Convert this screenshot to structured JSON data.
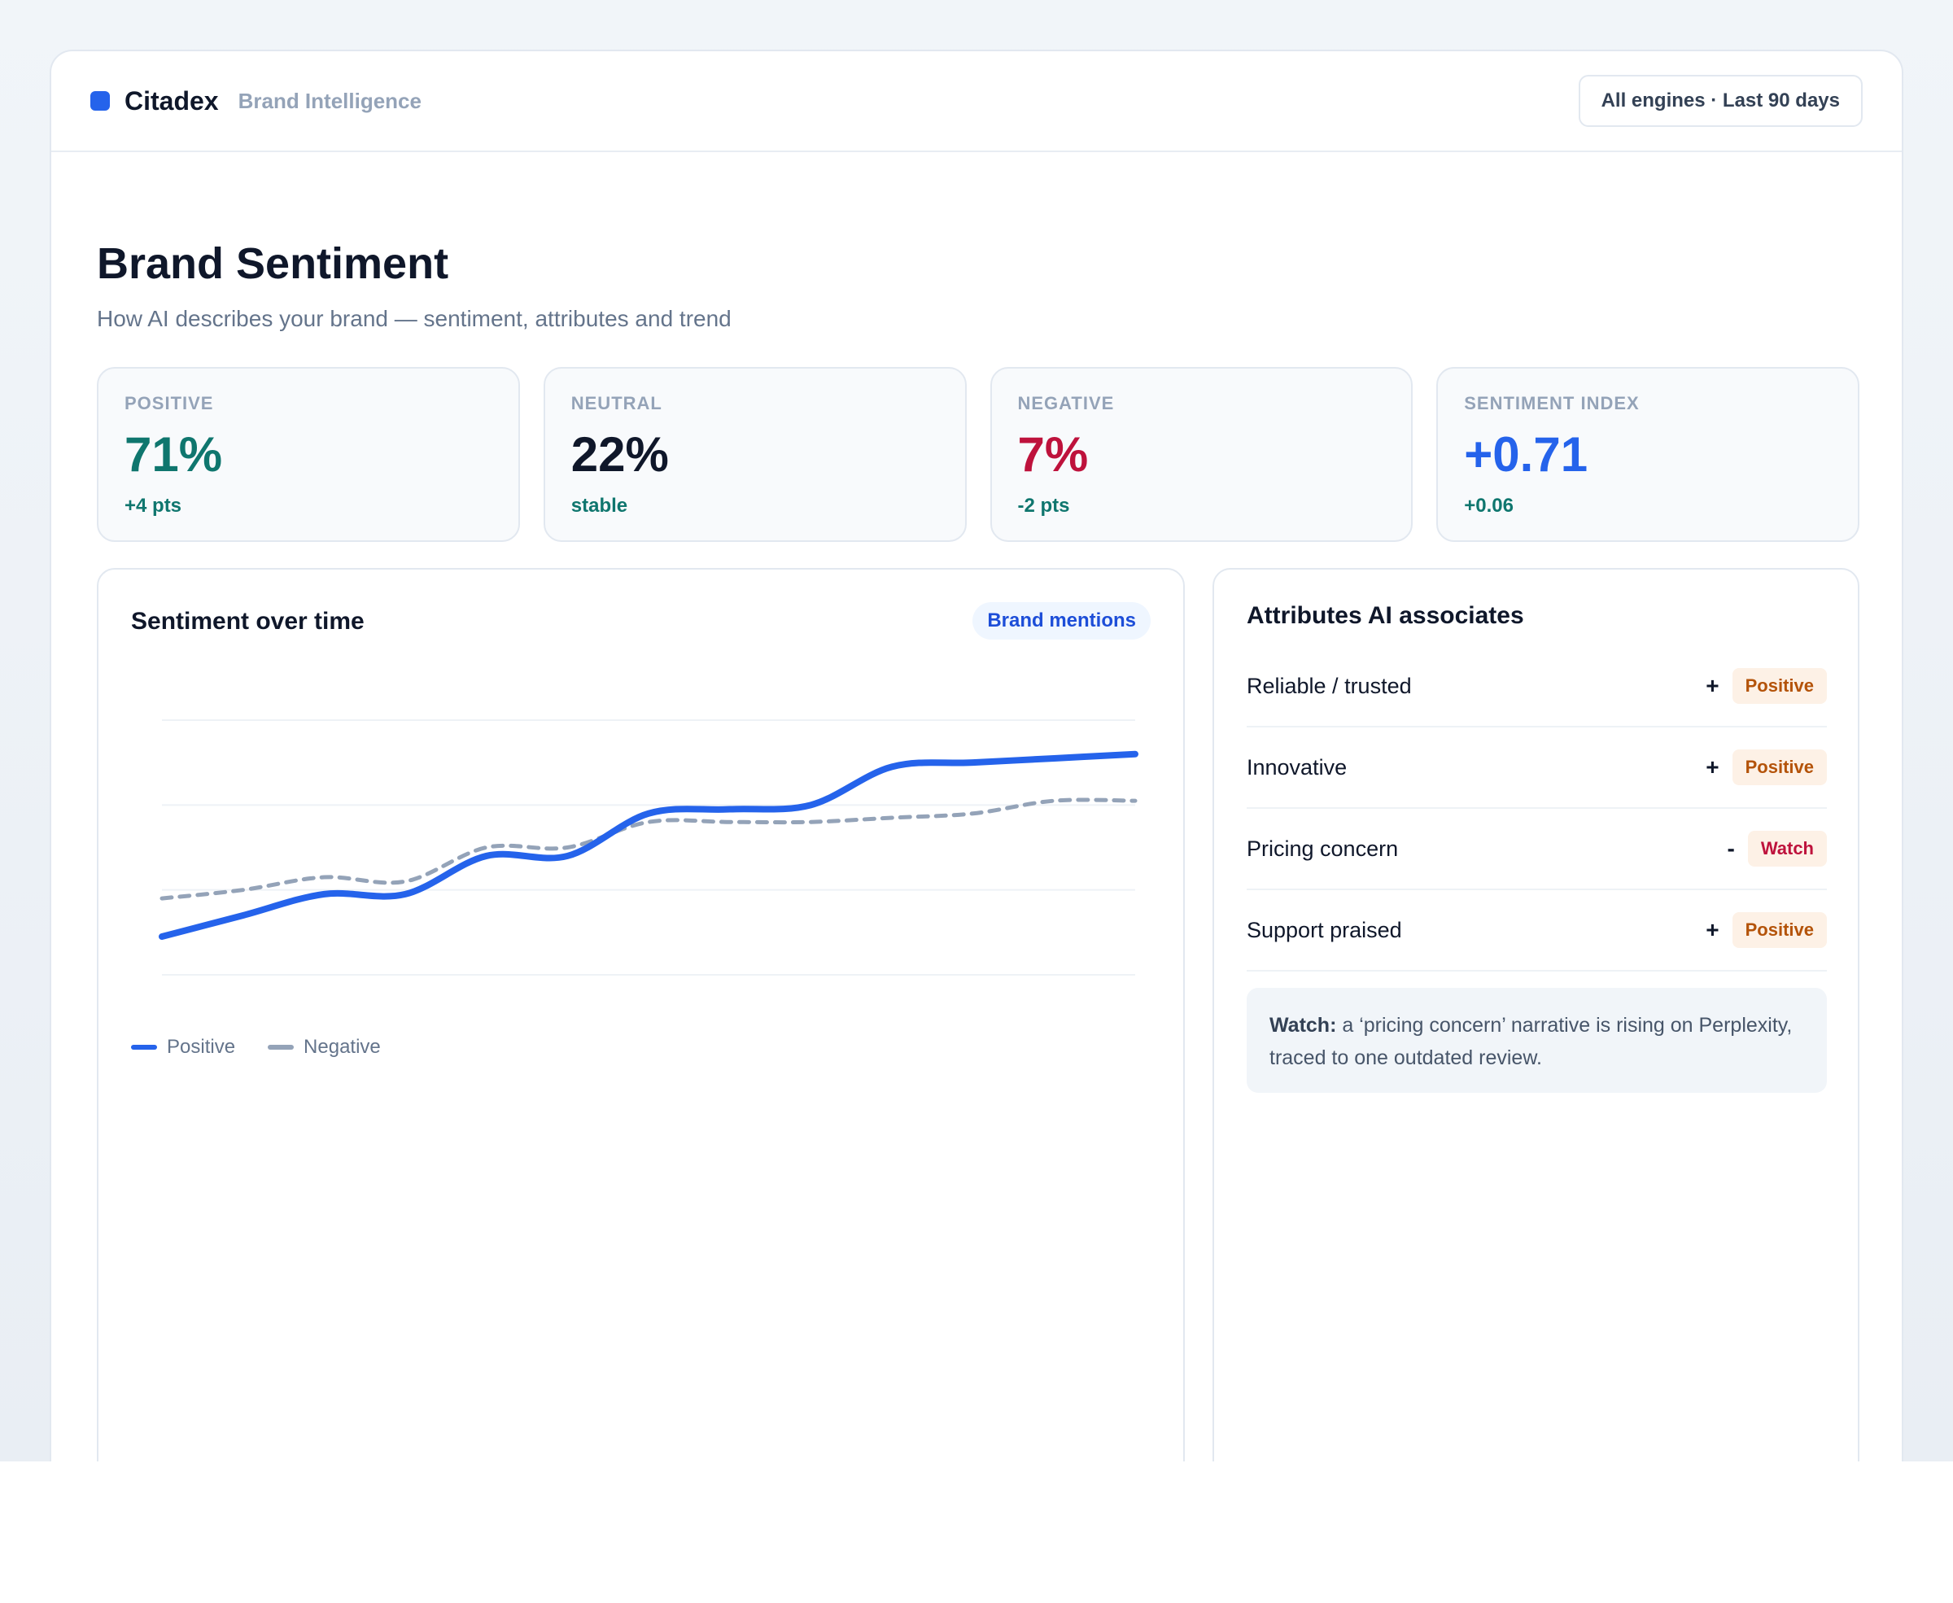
{
  "app": {
    "name": "Citadex",
    "section": "Brand Intelligence",
    "range_button": "All engines · Last 90 days",
    "accent": "#2563eb"
  },
  "page": {
    "title": "Brand Sentiment",
    "subtitle": "How AI describes your brand — sentiment, attributes and trend"
  },
  "kpis": [
    {
      "label": "POSITIVE",
      "value": "71%",
      "delta": "+4 pts",
      "color": "#0f766e"
    },
    {
      "label": "NEUTRAL",
      "value": "22%",
      "delta": "stable",
      "color": "#0f172a"
    },
    {
      "label": "NEGATIVE",
      "value": "7%",
      "delta": "-2 pts",
      "color": "#be123c"
    },
    {
      "label": "SENTIMENT INDEX",
      "value": "+0.71",
      "delta": "+0.06",
      "color": "#2563eb"
    }
  ],
  "chart": {
    "title": "Sentiment over time",
    "pill": "Brand mentions"
  },
  "chart_data": {
    "type": "line",
    "grid": true,
    "ylim": [
      0,
      3
    ],
    "x": [
      0,
      1,
      2,
      3,
      4,
      5,
      6,
      7,
      8,
      9,
      10,
      11,
      12
    ],
    "series": [
      {
        "name": "Positive",
        "color": "#2563eb",
        "style": "solid",
        "values": [
          0.45,
          0.7,
          0.95,
          0.95,
          1.4,
          1.4,
          1.9,
          1.95,
          2.0,
          2.45,
          2.5,
          2.55,
          2.6
        ]
      },
      {
        "name": "Negative",
        "color": "#94a3b8",
        "style": "dashed",
        "values": [
          0.9,
          1.0,
          1.15,
          1.1,
          1.5,
          1.5,
          1.8,
          1.8,
          1.8,
          1.85,
          1.9,
          2.05,
          2.05
        ]
      }
    ]
  },
  "attributes": {
    "title": "Attributes AI associates",
    "items": [
      {
        "label": "Reliable / trusted",
        "sign": "+",
        "badge": "Positive",
        "badge_color": "#b45309"
      },
      {
        "label": "Innovative",
        "sign": "+",
        "badge": "Positive",
        "badge_color": "#b45309"
      },
      {
        "label": "Pricing concern",
        "sign": "-",
        "badge": "Watch",
        "badge_color": "#be123c"
      },
      {
        "label": "Support praised",
        "sign": "+",
        "badge": "Positive",
        "badge_color": "#b45309"
      }
    ],
    "note_strong": "Watch:",
    "note_text": " a ‘pricing concern’ narrative is rising on Perplexity, traced to one outdated review."
  }
}
